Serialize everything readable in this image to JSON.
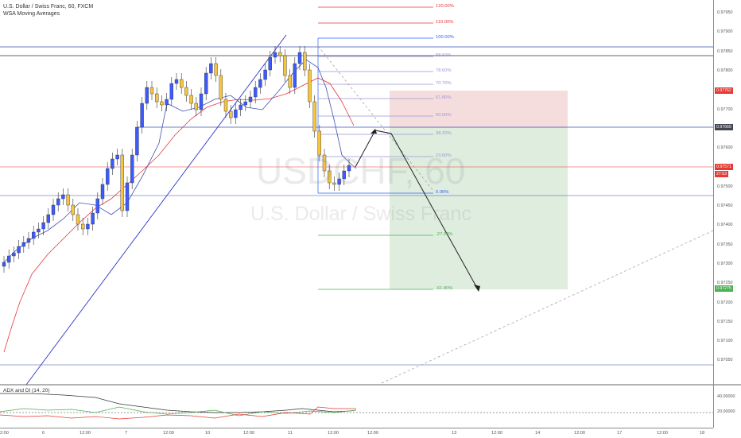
{
  "header": {
    "symbol_line": "U.S. Dollar / Swiss Franc, 60, FXCM",
    "indicator": "WSA Moving Averages"
  },
  "watermark": {
    "ticker": "USDCHF, 60",
    "name": "U.S. Dollar / Swiss Franc"
  },
  "adx": {
    "label": "ADX and DI (14, 20)",
    "scale": [
      "40.00000",
      "20.00000"
    ]
  },
  "price_scale": [
    "0.97950",
    "0.97900",
    "0.97850",
    "0.97800",
    "0.97750",
    "0.97700",
    "0.97650",
    "0.97600",
    "0.97550",
    "0.97500",
    "0.97450",
    "0.97400",
    "0.97350",
    "0.97300",
    "0.97250",
    "0.97200",
    "0.97150",
    "0.97100",
    "0.97050"
  ],
  "price_tags": {
    "stop": "0.97762",
    "entry": "0.97669",
    "last": "0.97571",
    "countdown": "27:53",
    "target": "0.97275"
  },
  "colors": {
    "stop": "#e53935",
    "entry": "#434651",
    "last": "#e53935",
    "target": "#4caf50"
  },
  "fib_levels": [
    {
      "label": "120.00%",
      "color": "#e53935"
    },
    {
      "label": "110.00%",
      "color": "#e53935"
    },
    {
      "label": "100.00%",
      "color": "#2962ff"
    },
    {
      "label": "88.60%",
      "color": "#9598d8"
    },
    {
      "label": "78.60%",
      "color": "#9598d8"
    },
    {
      "label": "70.70%",
      "color": "#9598d8"
    },
    {
      "label": "61.80%",
      "color": "#9598d8"
    },
    {
      "label": "50.00%",
      "color": "#9598d8"
    },
    {
      "label": "38.20%",
      "color": "#9598d8"
    },
    {
      "label": "23.60%",
      "color": "#9598d8"
    },
    {
      "label": "0.00%",
      "color": "#2962ff"
    },
    {
      "label": "-27.00%",
      "color": "#4caf50"
    },
    {
      "label": "-61.80%",
      "color": "#4caf50"
    }
  ],
  "time_labels": [
    "2:00",
    "6",
    "12:00",
    "7",
    "12:00",
    "10",
    "12:00",
    "11",
    "12:00",
    "12:00",
    "13",
    "12:00",
    "14",
    "12:00",
    "17",
    "12:00",
    "18"
  ]
}
